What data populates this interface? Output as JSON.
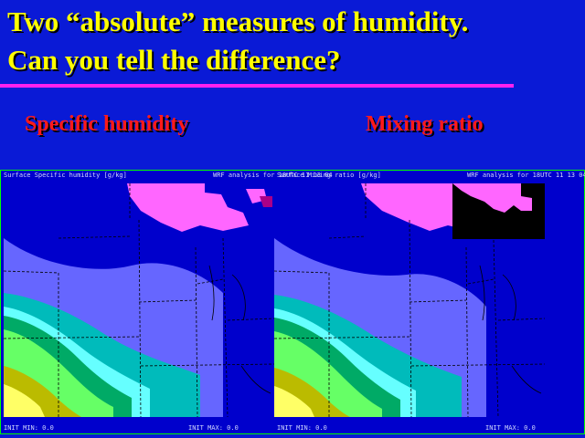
{
  "title": {
    "line1": "Two “absolute” measures of humidity.",
    "line2": "Can you tell the difference?"
  },
  "subtitles": {
    "left": "Specific humidity",
    "right": "Mixing ratio"
  },
  "colors": {
    "background": "#0a1ad6",
    "title": "#ffff00",
    "subtitle": "#ff1a1a",
    "rule": "#ff22ee",
    "map_border": "#00ff00",
    "contour_fills": [
      "#ff66ff",
      "#0000cc",
      "#6666ff",
      "#00bbbb",
      "#66ffff",
      "#00aa66",
      "#66ff66",
      "#bbbb00",
      "#ffff66"
    ]
  },
  "panels": [
    {
      "header_left": "Surface Specific humidity [g/kg]",
      "header_right": "WRF analysis for 18UTC 11 13 04",
      "footer_left": "INIT MIN: 0.0",
      "footer_right": "INIT MAX: 0.0"
    },
    {
      "header_left": "Surface Mixing ratio [g/kg]",
      "header_right": "WRF analysis for 18UTC 11 13 04",
      "footer_left": "INIT MIN: 0.0",
      "footer_right": "INIT MAX: 0.0"
    }
  ]
}
